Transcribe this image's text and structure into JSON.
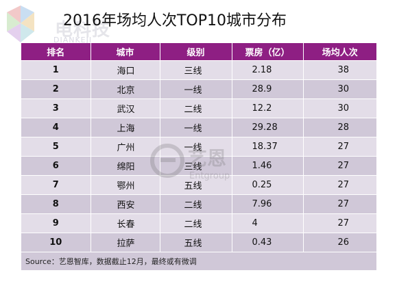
{
  "logo": {
    "text": "电科技",
    "sub": "DIANKEJI"
  },
  "title": "2016年场均人次TOP10城市分布",
  "table": {
    "headers": [
      "排名",
      "城市",
      "级别",
      "票房（亿）",
      "场均人次"
    ],
    "rows": [
      {
        "rank": "1",
        "city": "海口",
        "tier": "三线",
        "box": "2.18",
        "avg": "38"
      },
      {
        "rank": "2",
        "city": "北京",
        "tier": "一线",
        "box": "28.9",
        "avg": "30"
      },
      {
        "rank": "3",
        "city": "武汉",
        "tier": "二线",
        "box": "12.2",
        "avg": "30"
      },
      {
        "rank": "4",
        "city": "上海",
        "tier": "一线",
        "box": "29.28",
        "avg": "28"
      },
      {
        "rank": "5",
        "city": "广州",
        "tier": "一线",
        "box": "18.37",
        "avg": "27"
      },
      {
        "rank": "6",
        "city": "绵阳",
        "tier": "三线",
        "box": "1.46",
        "avg": "27"
      },
      {
        "rank": "7",
        "city": "鄂州",
        "tier": "五线",
        "box": "0.25",
        "avg": "27"
      },
      {
        "rank": "8",
        "city": "西安",
        "tier": "二线",
        "box": "7.96",
        "avg": "27"
      },
      {
        "rank": "9",
        "city": "长春",
        "tier": "二线",
        "box": "4",
        "avg": "27"
      },
      {
        "rank": "10",
        "city": "拉萨",
        "tier": "五线",
        "box": "0.43",
        "avg": "26"
      }
    ],
    "source": "Source：艺恩智库，数据截止12月，最终或有微调"
  },
  "watermark": {
    "text": "艺恩",
    "sub": "Entgroup"
  },
  "colors": {
    "header_bg": "#8e1f83",
    "row_light": "#e3dde8",
    "row_dark": "#d0c8d8"
  }
}
